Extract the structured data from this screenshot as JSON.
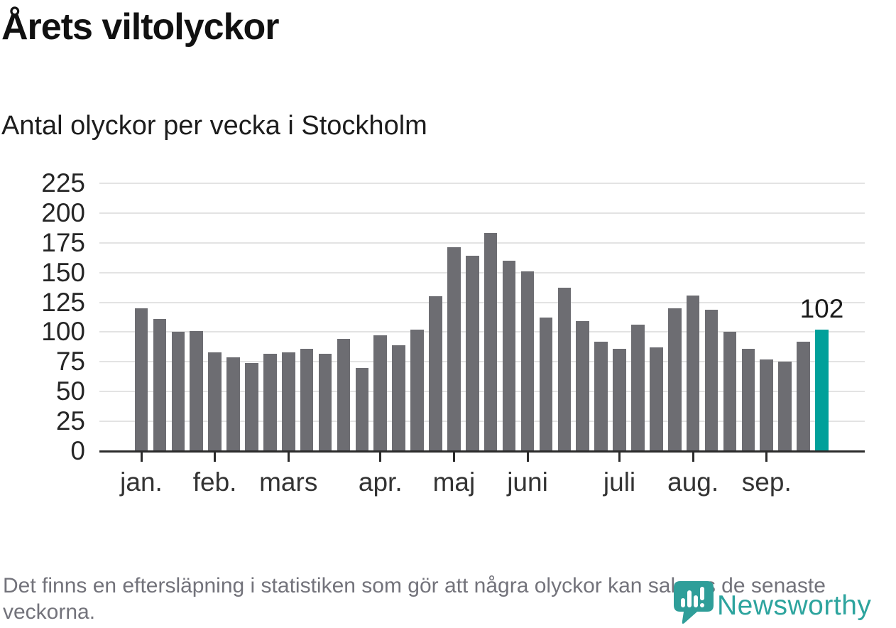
{
  "header": {
    "title": "Årets viltolyckor",
    "subtitle": "Antal olyckor per vecka i Stockholm"
  },
  "footer": {
    "note": "Det finns en eftersläpning i statistiken som gör att några olyckor kan saknas de senaste veckorna."
  },
  "branding": {
    "name": "Newsworthy",
    "logo_icon": "newsworthy-speech-bubble-bar-chart-icon",
    "accent_color": "#2da49e"
  },
  "chart_data": {
    "type": "bar",
    "title": "Årets viltolyckor",
    "subtitle": "Antal olyckor per vecka i Stockholm",
    "x_unit": "vecka",
    "weeks": [
      1,
      2,
      3,
      4,
      5,
      6,
      7,
      8,
      9,
      10,
      11,
      12,
      13,
      14,
      15,
      16,
      17,
      18,
      19,
      20,
      21,
      22,
      23,
      24,
      25,
      26,
      27,
      28,
      29,
      30,
      31,
      32,
      33,
      34,
      35,
      36,
      37,
      38
    ],
    "values": [
      120,
      111,
      100,
      101,
      83,
      79,
      74,
      82,
      83,
      86,
      82,
      94,
      70,
      97,
      89,
      102,
      130,
      171,
      164,
      183,
      160,
      151,
      112,
      137,
      109,
      92,
      86,
      106,
      87,
      120,
      131,
      119,
      100,
      86,
      77,
      75,
      92,
      102
    ],
    "bar_color": "#6d6d72",
    "highlight_index": 37,
    "highlight_color": "#00a09a",
    "highlight_label": "102",
    "ylim": [
      0,
      225
    ],
    "yticks": [
      0,
      25,
      50,
      75,
      100,
      125,
      150,
      175,
      200,
      225
    ],
    "grid": "horizontal",
    "legend": "none",
    "xticks": [
      {
        "label": "jan.",
        "week": 1
      },
      {
        "label": "feb.",
        "week": 5
      },
      {
        "label": "mars",
        "week": 9
      },
      {
        "label": "apr.",
        "week": 14
      },
      {
        "label": "maj",
        "week": 18
      },
      {
        "label": "juni",
        "week": 22
      },
      {
        "label": "juli",
        "week": 27
      },
      {
        "label": "aug.",
        "week": 31
      },
      {
        "label": "sep.",
        "week": 35
      }
    ]
  }
}
